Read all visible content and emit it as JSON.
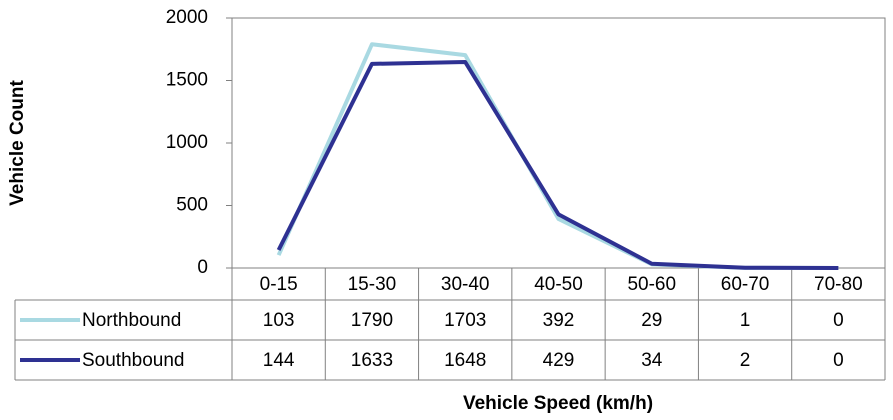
{
  "chart_data": {
    "type": "line",
    "x_label": "Vehicle Speed (km/h)",
    "y_label": "Vehicle Count",
    "categories": [
      "0-15",
      "15-30",
      "30-40",
      "40-50",
      "50-60",
      "60-70",
      "70-80"
    ],
    "series": [
      {
        "name": "Northbound",
        "color": "#a9d9e2",
        "values": [
          103,
          1790,
          1703,
          392,
          29,
          1,
          0
        ]
      },
      {
        "name": "Southbound",
        "color": "#2e3192",
        "values": [
          144,
          1633,
          1648,
          429,
          34,
          2,
          0
        ]
      }
    ],
    "ylim": [
      0,
      2000
    ],
    "yticks": [
      0,
      500,
      1000,
      1500,
      2000
    ],
    "grid": false,
    "data_table": true
  }
}
